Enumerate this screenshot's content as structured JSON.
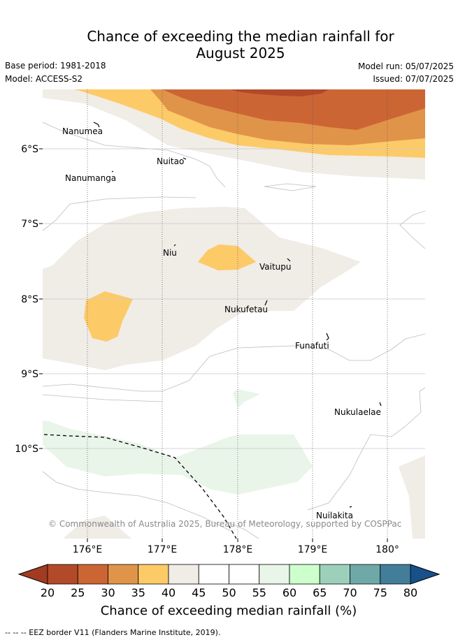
{
  "header": {
    "title_line1": "Chance of exceeding the median rainfall for",
    "title_line2": "August 2025",
    "base_period": "Base period: 1981-2018",
    "model": "Model: ACCESS-S2",
    "model_run": "Model run: 05/07/2025",
    "issued": "Issued: 07/07/2025"
  },
  "map": {
    "lon_ticks": [
      "176°E",
      "177°E",
      "178°E",
      "179°E",
      "180°"
    ],
    "lat_ticks": [
      "6°S",
      "7°S",
      "8°S",
      "9°S",
      "10°S"
    ],
    "islands": [
      {
        "name": "Nanumea"
      },
      {
        "name": "Nuitao"
      },
      {
        "name": "Nanumanga"
      },
      {
        "name": "Niu"
      },
      {
        "name": "Vaitupu"
      },
      {
        "name": "Nukufetau"
      },
      {
        "name": "Funafuti"
      },
      {
        "name": "Nukulaelae"
      },
      {
        "name": "Nuilakita"
      }
    ],
    "copyright": "© Commonwealth of Australia 2025, Bureau of Meteorology, supported by COSPPac"
  },
  "colorbar": {
    "ticks": [
      "20",
      "25",
      "30",
      "35",
      "40",
      "45",
      "50",
      "55",
      "60",
      "65",
      "70",
      "75",
      "80"
    ],
    "colors": [
      "#b24a29",
      "#cc6534",
      "#e0944a",
      "#fdca68",
      "#f0ece6",
      "#ffffff",
      "#ffffff",
      "#e9f5e8",
      "#ccffcc",
      "#9dd0bb",
      "#6ea8a7",
      "#427d9a"
    ],
    "low_extend_color": "#a33b22",
    "high_extend_color": "#17508a",
    "label": "Chance of exceeding median rainfall (%)"
  },
  "legend": {
    "eez_text": "-- -- -- EEZ border V11 (Flanders Marine Institute, 2019)."
  }
}
